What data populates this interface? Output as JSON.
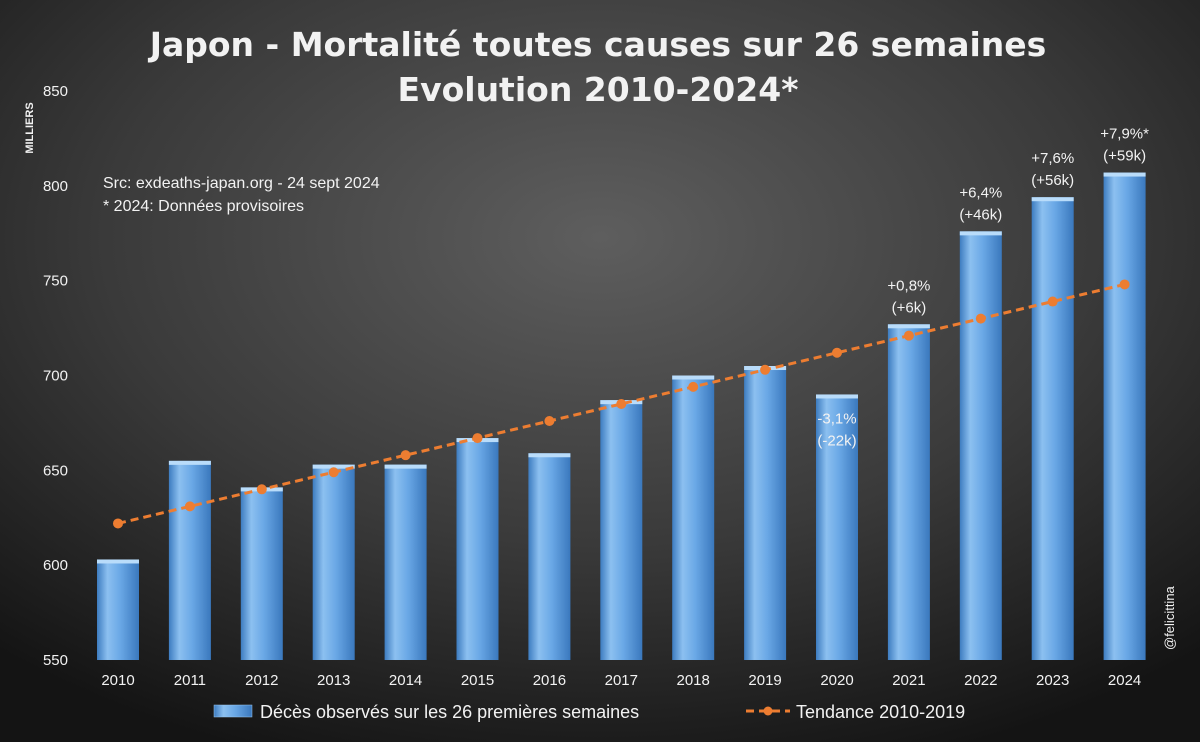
{
  "chart_data": {
    "type": "bar",
    "title": "Japon - Mortalité toutes causes sur 26 semaines",
    "subtitle": "Evolution 2010-2024*",
    "ylabel": "MILLIERS",
    "xlabel": "",
    "ylim": [
      550,
      850
    ],
    "yticks": [
      550,
      600,
      650,
      700,
      750,
      800,
      850
    ],
    "ytick_labels": [
      "550",
      "600",
      "650",
      "700",
      "750",
      "800",
      "850"
    ],
    "categories": [
      "2010",
      "2011",
      "2012",
      "2013",
      "2014",
      "2015",
      "2016",
      "2017",
      "2018",
      "2019",
      "2020",
      "2021",
      "2022",
      "2023",
      "2024"
    ],
    "series": [
      {
        "name": "Décès observés sur les 26 premières semaines",
        "type": "bar",
        "color": "#5b9bd5",
        "values": [
          603,
          655,
          641,
          653,
          653,
          667,
          659,
          687,
          700,
          705,
          690,
          727,
          776,
          794,
          807
        ]
      },
      {
        "name": "Tendance 2010-2019",
        "type": "line",
        "color": "#ed7d31",
        "values": [
          622,
          631,
          640,
          649,
          658,
          667,
          676,
          685,
          694,
          703,
          712,
          721,
          730,
          739,
          748
        ]
      }
    ],
    "annotations": [
      {
        "category": "2020",
        "lines": [
          "-3,1%",
          "(-22k)"
        ],
        "placement": "inside"
      },
      {
        "category": "2021",
        "lines": [
          "+0,8%",
          "(+6k)"
        ],
        "placement": "above"
      },
      {
        "category": "2022",
        "lines": [
          "+6,4%",
          "(+46k)"
        ],
        "placement": "above"
      },
      {
        "category": "2023",
        "lines": [
          "+7,6%",
          "(+56k)"
        ],
        "placement": "above"
      },
      {
        "category": "2024",
        "lines": [
          "+7,9%*",
          "(+59k)"
        ],
        "placement": "above"
      }
    ],
    "notes": [
      "Src: exdeaths-japan.org - 24 sept 2024",
      "* 2024: Données provisoires"
    ],
    "credit": "@felicittina",
    "legend_position": "bottom",
    "grid": false
  }
}
